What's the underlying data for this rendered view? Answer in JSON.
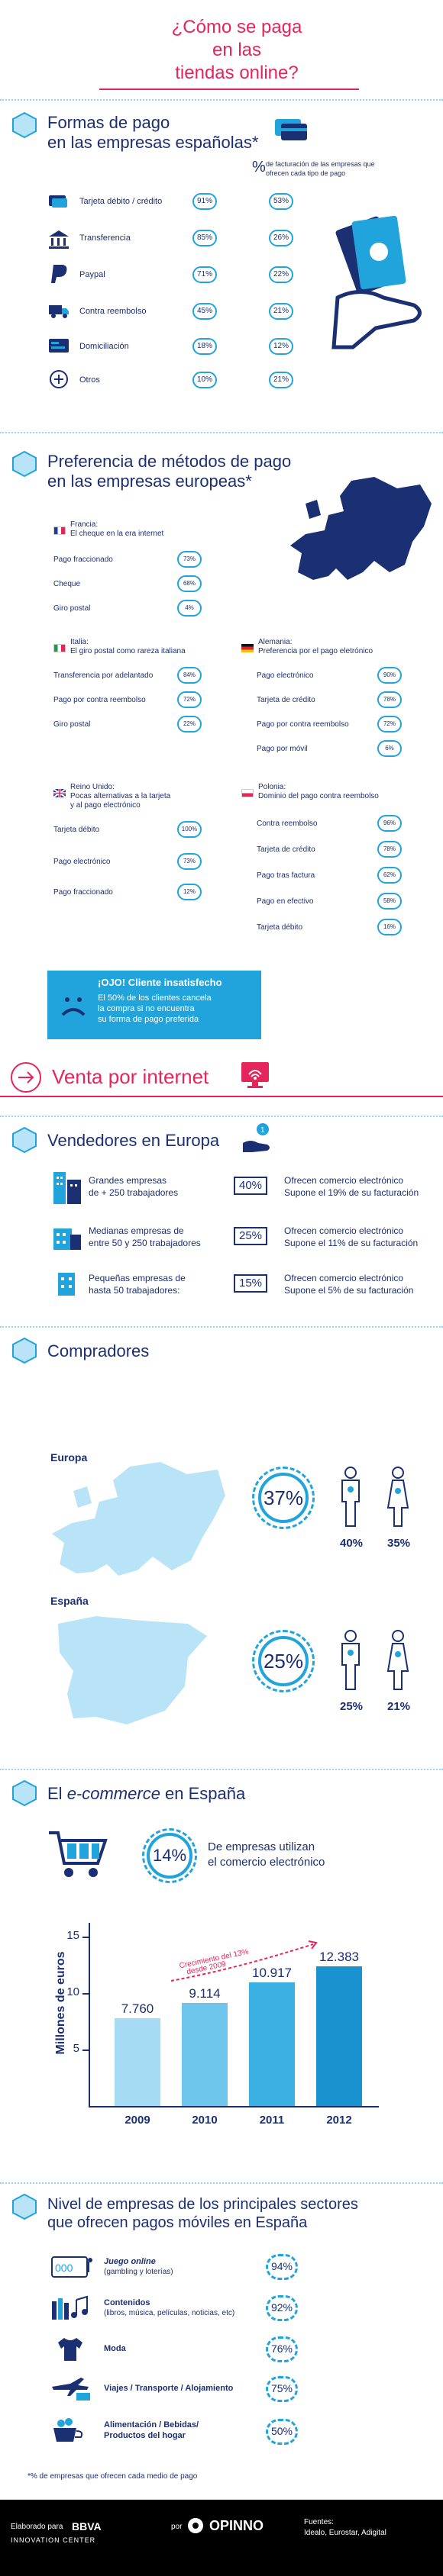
{
  "header": {
    "line1": "¿Cómo se paga",
    "line2": "en las",
    "line3": "tiendas online?"
  },
  "formas": {
    "title1": "Formas de pago",
    "title2": "en las empresas españolas*",
    "legend_pct": "%",
    "legend_text1": "de facturación de las empresas que",
    "legend_text2": "ofrecen cada tipo de pago",
    "rows": [
      {
        "label": "Tarjeta débito / crédito",
        "a": "91%",
        "b": "53%"
      },
      {
        "label": "Transferencia",
        "a": "85%",
        "b": "26%"
      },
      {
        "label": "Paypal",
        "a": "71%",
        "b": "22%"
      },
      {
        "label": "Contra reembolso",
        "a": "45%",
        "b": "21%"
      },
      {
        "label": "Domiciliación",
        "a": "18%",
        "b": "12%"
      },
      {
        "label": "Otros",
        "a": "10%",
        "b": "21%"
      }
    ]
  },
  "preferencia": {
    "title1": "Preferencia de métodos de pago",
    "title2": "en las empresas europeas*",
    "francia": {
      "name": "Francia:",
      "sub": "El cheque en la era internet",
      "rows": [
        {
          "label": "Pago fraccionado",
          "v": "73%"
        },
        {
          "label": "Cheque",
          "v": "68%"
        },
        {
          "label": "Giro postal",
          "v": "4%"
        }
      ]
    },
    "italia": {
      "name": "Italia:",
      "sub": "El giro postal como rareza italiana",
      "rows": [
        {
          "label": "Transferencia por adelantado",
          "v": "84%"
        },
        {
          "label": "Pago por contra reembolso",
          "v": "72%"
        },
        {
          "label": "Giro postal",
          "v": "22%"
        }
      ]
    },
    "alemania": {
      "name": "Alemania:",
      "sub": "Preferencia por el pago eletrónico",
      "rows": [
        {
          "label": "Pago electrónico",
          "v": "90%"
        },
        {
          "label": "Tarjeta de crédito",
          "v": "78%"
        },
        {
          "label": "Pago por contra reembolso",
          "v": "72%"
        },
        {
          "label": "Pago por móvil",
          "v": "6%"
        }
      ]
    },
    "reinounido": {
      "name": "Reino Unido:",
      "sub1": "Pocas alternativas a la tarjeta",
      "sub2": "y al pago electrónico",
      "rows": [
        {
          "label": "Tarjeta débito",
          "v": "100%"
        },
        {
          "label": "Pago electrónico",
          "v": "73%"
        },
        {
          "label": "Pago fraccionado",
          "v": "12%"
        }
      ]
    },
    "polonia": {
      "name": "Polonia:",
      "sub": "Dominio del pago contra reembolso",
      "rows": [
        {
          "label": "Contra reembolso",
          "v": "96%"
        },
        {
          "label": "Tarjeta de crédito",
          "v": "78%"
        },
        {
          "label": "Pago tras factura",
          "v": "62%"
        },
        {
          "label": "Pago en efectivo",
          "v": "58%"
        },
        {
          "label": "Tarjeta débito",
          "v": "16%"
        }
      ]
    }
  },
  "ojo": {
    "title": "¡OJO! Cliente insatisfecho",
    "l1": "El 50% de los clientes cancela",
    "l2": "la compra si no encuentra",
    "l3": "su forma de pago preferida"
  },
  "venta": {
    "title": "Venta por internet"
  },
  "vendedores": {
    "title": "Vendedores en Europa",
    "rows": [
      {
        "l1": "Grandes empresas",
        "l2": "de + 250 trabajadores",
        "pct": "40%",
        "t1": "Ofrecen comercio electrónico",
        "t2": "Supone el 19% de su facturación"
      },
      {
        "l1": "Medianas empresas de",
        "l2": "entre 50 y 250 trabajadores",
        "pct": "25%",
        "t1": "Ofrecen comercio electrónico",
        "t2": "Supone el 11% de su facturación"
      },
      {
        "l1": "Pequeñas empresas de",
        "l2": "hasta 50 trabajadores:",
        "pct": "15%",
        "t1": "Ofrecen comercio electrónico",
        "t2": "Supone el 5% de su facturación"
      }
    ]
  },
  "compradores": {
    "title": "Compradores",
    "europa": {
      "label": "Europa",
      "total": "37%",
      "men": "40%",
      "women": "35%"
    },
    "espana": {
      "label": "España",
      "total": "25%",
      "men": "25%",
      "women": "21%"
    }
  },
  "ecommerce": {
    "title_pre": "El ",
    "title_em": "e-commerce",
    "title_post": " en España",
    "pct": "14%",
    "t1": "De empresas utilizan",
    "t2": "el comercio electrónico"
  },
  "chart_data": {
    "type": "bar",
    "categories": [
      "2009",
      "2010",
      "2011",
      "2012"
    ],
    "values": [
      7760,
      9114,
      10917,
      12383
    ],
    "value_labels": [
      "7.760",
      "9.114",
      "10.917",
      "12.383"
    ],
    "ylabel": "Millones de euros",
    "yticks": [
      "5",
      "10",
      "15"
    ],
    "ylim": [
      0,
      15000
    ],
    "annotation1": "Crecimiento del 13%",
    "annotation2": "desde 2009",
    "colors": [
      "#a6dcf3",
      "#6ec6ec",
      "#3bb0e2",
      "#1b92d0"
    ]
  },
  "moviles": {
    "title1": "Nivel de empresas de los principales sectores",
    "title2": "que ofrecen pagos móviles en España",
    "rows": [
      {
        "l1": "Juego online",
        "l2": "(gambling y loterías)",
        "v": "94%"
      },
      {
        "l1": "Contenidos",
        "l2": "(libros, música, películas, noticias, etc)",
        "v": "92%"
      },
      {
        "l1": "Moda",
        "l2": "",
        "v": "76%"
      },
      {
        "l1": "Viajes / Transporte / Alojamiento",
        "l2": "",
        "v": "75%"
      },
      {
        "l1": "Alimentación / Bebidas/",
        "l2": "Productos del hogar",
        "v": "50%"
      }
    ],
    "footnote": "*% de empresas que ofrecen cada medio de pago"
  },
  "footer": {
    "elaborado": "Elaborado para",
    "bbva": "BBVA",
    "innovation": "INNOVATION CENTER",
    "por": "por",
    "opinno": "OPINNO",
    "fuentes": "Fuentes:",
    "fuentes_list": "Idealo, Eurostar, Adigital"
  }
}
